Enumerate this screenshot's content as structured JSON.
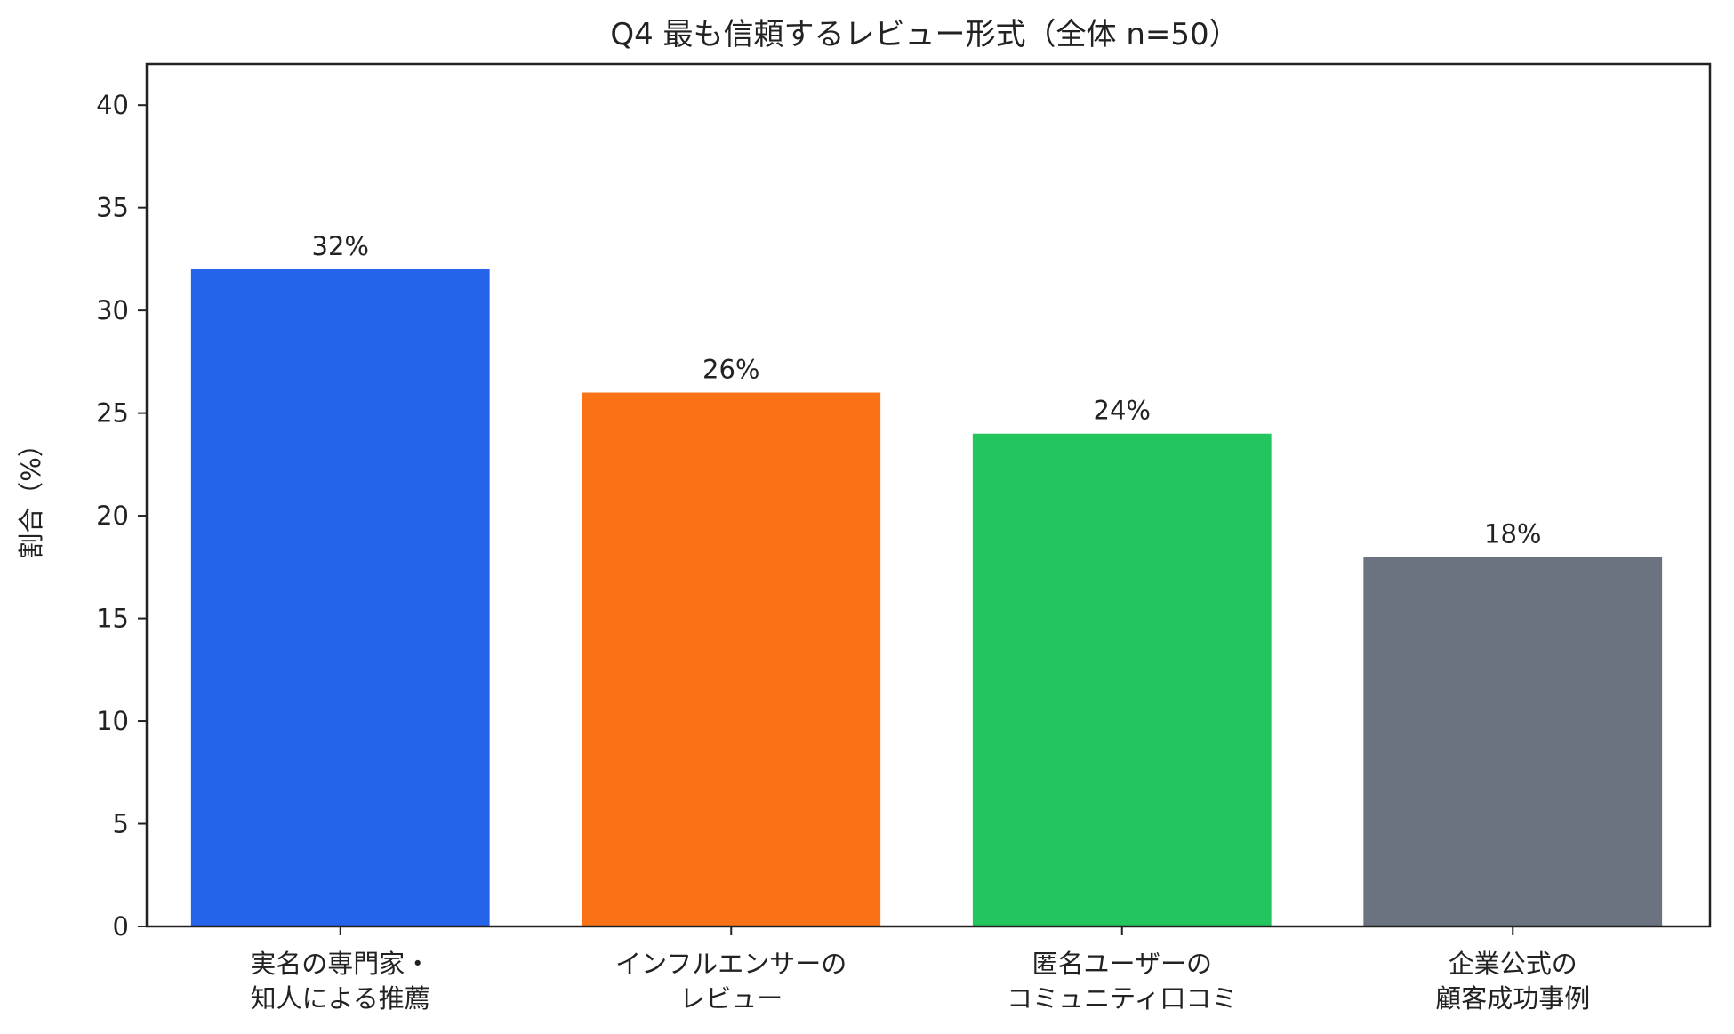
{
  "chart_data": {
    "type": "bar",
    "title": "Q4 最も信頼するレビュー形式（全体 n=50）",
    "xlabel": "",
    "ylabel": "割合（%）",
    "ylim": [
      0,
      42
    ],
    "yticks": [
      0,
      5,
      10,
      15,
      20,
      25,
      30,
      35,
      40
    ],
    "grid": false,
    "categories": [
      [
        "実名の専門家・",
        "知人による推薦"
      ],
      [
        "インフルエンサーの",
        "レビュー"
      ],
      [
        "匿名ユーザーの",
        "コミュニティ口コミ"
      ],
      [
        "企業公式の",
        "顧客成功事例"
      ]
    ],
    "values": [
      32,
      26,
      24,
      18
    ],
    "data_labels": [
      "32%",
      "26%",
      "24%",
      "18%"
    ],
    "colors": [
      "#2563eb",
      "#f97316",
      "#22c55e",
      "#6b7280"
    ]
  }
}
